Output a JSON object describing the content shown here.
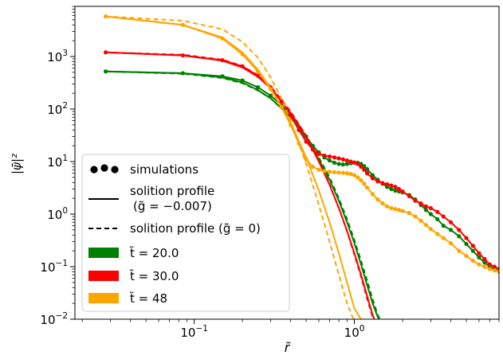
{
  "chart_data": {
    "type": "line",
    "xlabel": "r̃",
    "ylabel": "|ψ̄|²",
    "xscale": "log",
    "yscale": "log",
    "xlim": [
      0.018,
      8.0
    ],
    "ylim": [
      0.01,
      9000
    ],
    "x_tick_labels": [
      {
        "value": 0.1,
        "base": "10",
        "exp": "−1"
      },
      {
        "value": 1,
        "base": "10",
        "exp": "0"
      }
    ],
    "y_tick_labels": [
      {
        "value": 0.01,
        "base": "10",
        "exp": "−2"
      },
      {
        "value": 0.1,
        "base": "10",
        "exp": "−1"
      },
      {
        "value": 1,
        "base": "10",
        "exp": "0"
      },
      {
        "value": 10,
        "base": "10",
        "exp": "1"
      },
      {
        "value": 100,
        "base": "10",
        "exp": "2"
      },
      {
        "value": 1000,
        "base": "10",
        "exp": "3"
      }
    ],
    "legend_position": "lower-left",
    "legend": [
      {
        "kind": "dots",
        "text": "simulations"
      },
      {
        "kind": "solid",
        "text": "solition profile",
        "text2": "(g̃ = −0.007)"
      },
      {
        "kind": "dashed",
        "text": "solition profile (g̃ = 0)"
      },
      {
        "kind": "patch",
        "color": "#008000",
        "text": "t̃ = 20.0"
      },
      {
        "kind": "patch",
        "color": "#ff0000",
        "text": "t̃ = 30.0"
      },
      {
        "kind": "patch",
        "color": "#ffa500",
        "text": "t̃ = 48"
      }
    ],
    "series": [
      {
        "color": "#008000",
        "simulations": {
          "x": [
            0.028,
            0.085,
            0.15,
            0.2,
            0.25,
            0.3,
            0.35,
            0.4,
            0.45,
            0.5,
            0.55,
            0.6,
            0.65,
            0.7,
            0.75,
            0.8,
            0.85,
            0.9,
            0.95,
            1.0,
            1.05,
            1.1,
            1.15,
            1.2,
            1.3,
            1.4,
            1.5,
            1.6,
            1.7,
            1.8,
            1.9,
            2.0,
            2.2,
            2.4,
            2.6,
            2.8,
            3.0,
            3.3,
            3.6,
            4.0,
            4.5,
            5.0,
            5.5,
            6.0,
            6.5,
            7.0,
            7.5,
            8.0
          ],
          "y": [
            520,
            480,
            420,
            350,
            260,
            180,
            120,
            75,
            45,
            30,
            20,
            15,
            12,
            10.5,
            9.5,
            9.0,
            8.8,
            9.0,
            9.3,
            9.6,
            9.5,
            9.0,
            8.2,
            7.2,
            5.5,
            4.5,
            3.8,
            3.3,
            3.0,
            2.8,
            2.7,
            2.6,
            2.3,
            1.9,
            1.5,
            1.2,
            1.0,
            0.8,
            0.6,
            0.5,
            0.38,
            0.27,
            0.2,
            0.15,
            0.12,
            0.1,
            0.09,
            0.08
          ]
        },
        "profile_solid": {
          "x": [
            0.028,
            0.085,
            0.15,
            0.2,
            0.25,
            0.3,
            0.4,
            0.5,
            0.6,
            0.7,
            0.8,
            0.9,
            1.0,
            1.1,
            1.2,
            1.3,
            1.4,
            1.5
          ],
          "y": [
            520,
            480,
            400,
            320,
            230,
            160,
            70,
            28,
            11,
            4.5,
            1.8,
            0.7,
            0.28,
            0.11,
            0.045,
            0.02,
            0.011,
            0.008
          ]
        },
        "profile_dashed": {
          "x": [
            0.028,
            0.085,
            0.15,
            0.2,
            0.25,
            0.3,
            0.4,
            0.5,
            0.6,
            0.7,
            0.8,
            0.9,
            1.0,
            1.1,
            1.2,
            1.3,
            1.4,
            1.5
          ],
          "y": [
            520,
            470,
            390,
            310,
            225,
            160,
            72,
            30,
            12,
            5,
            2,
            0.8,
            0.32,
            0.13,
            0.055,
            0.024,
            0.012,
            0.008
          ]
        }
      },
      {
        "color": "#ff0000",
        "simulations": {
          "x": [
            0.028,
            0.085,
            0.15,
            0.2,
            0.25,
            0.3,
            0.35,
            0.4,
            0.45,
            0.5,
            0.55,
            0.6,
            0.65,
            0.7,
            0.75,
            0.8,
            0.85,
            0.9,
            0.95,
            1.0,
            1.05,
            1.1,
            1.15,
            1.2,
            1.3,
            1.4,
            1.5,
            1.6,
            1.7,
            1.8,
            1.9,
            2.0,
            2.2,
            2.4,
            2.6,
            2.8,
            3.0,
            3.3,
            3.6,
            4.0,
            4.5,
            5.0,
            5.5,
            6.0,
            6.5,
            7.0,
            7.5,
            8.0
          ],
          "y": [
            1200,
            1050,
            850,
            650,
            430,
            260,
            140,
            75,
            40,
            24,
            17,
            14,
            13,
            12.5,
            12,
            11.5,
            11,
            10.5,
            10,
            9.5,
            9.0,
            8.0,
            7.0,
            6.0,
            4.8,
            4.2,
            3.9,
            3.7,
            3.5,
            3.3,
            3.0,
            2.7,
            2.2,
            1.8,
            1.6,
            1.4,
            1.3,
            1.1,
            0.9,
            0.7,
            0.5,
            0.35,
            0.25,
            0.18,
            0.14,
            0.11,
            0.1,
            0.09
          ]
        },
        "profile_solid": {
          "x": [
            0.028,
            0.085,
            0.15,
            0.2,
            0.25,
            0.3,
            0.4,
            0.5,
            0.6,
            0.7,
            0.8,
            0.9,
            1.0,
            1.1,
            1.2,
            1.3,
            1.37
          ],
          "y": [
            1200,
            1050,
            830,
            620,
            410,
            250,
            85,
            30,
            10,
            3.6,
            1.3,
            0.48,
            0.18,
            0.07,
            0.028,
            0.012,
            0.008
          ]
        },
        "profile_dashed": {
          "x": [
            0.028,
            0.085,
            0.15,
            0.2,
            0.25,
            0.3,
            0.4,
            0.5,
            0.6,
            0.7,
            0.8,
            0.9,
            1.0,
            1.1,
            1.2,
            1.3,
            1.35
          ],
          "y": [
            1200,
            1080,
            870,
            660,
            440,
            270,
            90,
            31,
            10.5,
            3.7,
            1.3,
            0.47,
            0.17,
            0.065,
            0.025,
            0.011,
            0.008
          ]
        }
      },
      {
        "color": "#ffa500",
        "simulations": {
          "x": [
            0.028,
            0.085,
            0.15,
            0.2,
            0.25,
            0.3,
            0.35,
            0.4,
            0.45,
            0.5,
            0.55,
            0.6,
            0.65,
            0.7,
            0.75,
            0.8,
            0.85,
            0.9,
            0.95,
            1.0,
            1.05,
            1.1,
            1.15,
            1.2,
            1.3,
            1.4,
            1.5,
            1.6,
            1.7,
            1.8,
            1.9,
            2.0,
            2.2,
            2.4,
            2.6,
            2.8,
            3.0,
            3.3,
            3.6,
            4.0,
            4.5,
            5.0,
            5.5,
            6.0,
            6.5,
            7.0,
            7.5,
            8.0
          ],
          "y": [
            5800,
            4000,
            2200,
            1100,
            520,
            240,
            110,
            50,
            22,
            11,
            8,
            7,
            6.6,
            6.4,
            6.3,
            6.2,
            6.1,
            6.0,
            5.8,
            5.5,
            5.0,
            4.4,
            3.8,
            3.2,
            2.4,
            1.9,
            1.6,
            1.4,
            1.3,
            1.25,
            1.2,
            1.15,
            1.05,
            0.9,
            0.75,
            0.62,
            0.52,
            0.42,
            0.35,
            0.28,
            0.2,
            0.16,
            0.13,
            0.11,
            0.1,
            0.09,
            0.085,
            0.08
          ]
        },
        "profile_solid": {
          "x": [
            0.028,
            0.085,
            0.15,
            0.2,
            0.25,
            0.3,
            0.4,
            0.5,
            0.6,
            0.7,
            0.8,
            0.9,
            1.0,
            1.1,
            1.17
          ],
          "y": [
            5800,
            4000,
            2300,
            1200,
            560,
            250,
            55,
            12,
            2.8,
            0.7,
            0.18,
            0.05,
            0.016,
            0.01,
            0.008
          ]
        },
        "profile_dashed": {
          "x": [
            0.028,
            0.085,
            0.15,
            0.2,
            0.25,
            0.3,
            0.35,
            0.4,
            0.5,
            0.6,
            0.7,
            0.8,
            0.9,
            1.0,
            1.03
          ],
          "y": [
            5800,
            4800,
            3300,
            1900,
            950,
            400,
            160,
            60,
            9,
            1.5,
            0.3,
            0.07,
            0.02,
            0.009,
            0.008
          ]
        }
      }
    ]
  }
}
